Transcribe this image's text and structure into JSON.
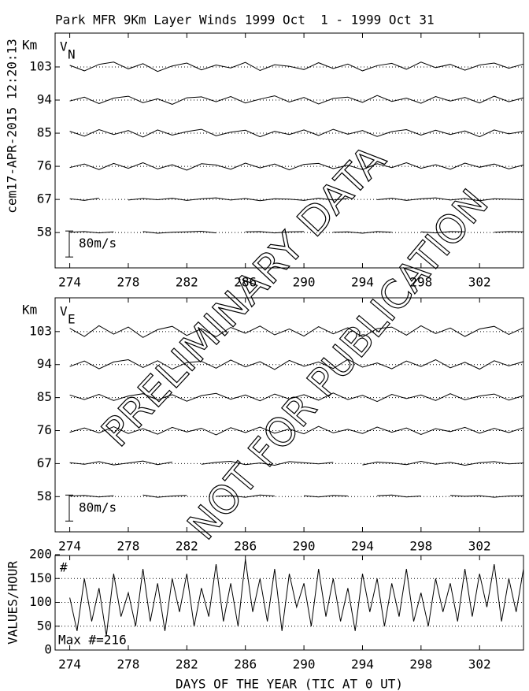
{
  "timestamp": "cem17-APR-2015 12:20:13",
  "watermark": [
    "PRELIMINARY DATA",
    "NOT FOR PUBLICATION"
  ],
  "chart_data": [
    {
      "type": "line",
      "title": "Park MFR 9Km Layer Winds 1999 Oct  1 - 1999 Oct 31",
      "y_unit": "Km",
      "component": "V",
      "component_sub": "N",
      "xlim": [
        273,
        305
      ],
      "xticks": [
        274,
        278,
        282,
        286,
        290,
        294,
        298,
        302
      ],
      "ylim": [
        48.4,
        112.2
      ],
      "yticks": [
        58,
        67,
        76,
        85,
        94,
        103
      ],
      "scale_bar": {
        "value": 80,
        "label": "80m/s"
      },
      "x": [
        274,
        275,
        276,
        277,
        278,
        279,
        280,
        281,
        282,
        283,
        284,
        285,
        286,
        287,
        288,
        289,
        290,
        291,
        292,
        293,
        294,
        295,
        296,
        297,
        298,
        299,
        300,
        301,
        302,
        303,
        304,
        305
      ],
      "series": [
        {
          "altitude": 103,
          "values": [
            5,
            -12,
            8,
            15,
            -6,
            10,
            -14,
            3,
            12,
            -9,
            6,
            -3,
            14,
            -11,
            7,
            2,
            -8,
            13,
            -5,
            9,
            -12,
            4,
            11,
            -7,
            15,
            -2,
            8,
            -10,
            6,
            12,
            -4,
            9
          ]
        },
        {
          "altitude": 94,
          "values": [
            -3,
            9,
            -11,
            6,
            12,
            -8,
            4,
            -13,
            7,
            10,
            -5,
            11,
            -9,
            3,
            13,
            -6,
            8,
            -12,
            5,
            9,
            -7,
            14,
            -4,
            6,
            -10,
            11,
            -3,
            8,
            -9,
            12,
            -5,
            7
          ]
        },
        {
          "altitude": 85,
          "values": [
            6,
            -9,
            11,
            -4,
            8,
            -12,
            10,
            -6,
            5,
            12,
            -8,
            3,
            9,
            -11,
            6,
            -4,
            10,
            -7,
            12,
            -3,
            8,
            -10,
            5,
            11,
            -6,
            9,
            -4,
            7,
            -11,
            10,
            -2,
            6
          ]
        },
        {
          "altitude": 76,
          "values": [
            -4,
            7,
            -10,
            9,
            -6,
            11,
            -8,
            5,
            -12,
            8,
            4,
            -9,
            10,
            -5,
            7,
            -11,
            6,
            9,
            -7,
            3,
            -10,
            8,
            -4,
            11,
            -6,
            5,
            -9,
            10,
            -3,
            7,
            -8,
            4
          ]
        },
        {
          "altitude": 67,
          "values": [
            2,
            -3,
            4,
            null,
            -2,
            3,
            -1,
            4,
            -3,
            2,
            5,
            -2,
            3,
            -4,
            2,
            1,
            -3,
            4,
            -2,
            3,
            null,
            -1,
            4,
            -3,
            2,
            5,
            -2,
            3,
            -4,
            2,
            1,
            -1
          ]
        },
        {
          "altitude": 58,
          "values": [
            1,
            3,
            -1,
            2,
            null,
            3,
            -2,
            1,
            2,
            4,
            -1,
            null,
            2,
            3,
            -1,
            2,
            3,
            null,
            1,
            2,
            -2,
            3,
            1,
            null,
            2,
            -1,
            3,
            2,
            null,
            1,
            3,
            2
          ]
        }
      ]
    },
    {
      "type": "line",
      "y_unit": "Km",
      "component": "V",
      "component_sub": "E",
      "xlim": [
        273,
        305
      ],
      "xticks": [
        274,
        278,
        282,
        286,
        290,
        294,
        298,
        302
      ],
      "ylim": [
        48.4,
        112.2
      ],
      "yticks": [
        58,
        67,
        76,
        85,
        94,
        103
      ],
      "scale_bar": {
        "value": 80,
        "label": "80m/s"
      },
      "x": [
        274,
        275,
        276,
        277,
        278,
        279,
        280,
        281,
        282,
        283,
        284,
        285,
        286,
        287,
        288,
        289,
        290,
        291,
        292,
        293,
        294,
        295,
        296,
        297,
        298,
        299,
        300,
        301,
        302,
        303,
        304,
        305
      ],
      "series": [
        {
          "altitude": 103,
          "values": [
            10,
            -15,
            18,
            -8,
            14,
            -18,
            6,
            16,
            -12,
            9,
            -16,
            13,
            -5,
            17,
            -10,
            8,
            -14,
            15,
            -7,
            12,
            -17,
            9,
            14,
            -11,
            18,
            -6,
            11,
            -15,
            8,
            16,
            -9,
            12
          ]
        },
        {
          "altitude": 94,
          "values": [
            -6,
            11,
            -13,
            8,
            15,
            -9,
            12,
            -14,
            6,
            10,
            -11,
            14,
            -7,
            9,
            -15,
            13,
            -5,
            8,
            -12,
            16,
            -8,
            5,
            -13,
            11,
            -6,
            15,
            -10,
            7,
            -14,
            12,
            -4,
            9
          ]
        },
        {
          "altitude": 85,
          "values": [
            8,
            -6,
            10,
            -9,
            5,
            12,
            -7,
            9,
            -11,
            6,
            13,
            -5,
            8,
            -10,
            11,
            -4,
            9,
            -8,
            14,
            -6,
            7,
            -12,
            10,
            -3,
            8,
            -9,
            12,
            -7,
            5,
            11,
            -8,
            6
          ]
        },
        {
          "altitude": 76,
          "values": [
            -5,
            8,
            -7,
            12,
            -9,
            6,
            -11,
            10,
            -4,
            7,
            -13,
            9,
            -6,
            11,
            -8,
            5,
            -10,
            13,
            -7,
            4,
            -9,
            11,
            -5,
            8,
            -12,
            6,
            -3,
            10,
            -8,
            7,
            -6,
            9
          ]
        },
        {
          "altitude": 67,
          "values": [
            3,
            -2,
            6,
            -4,
            2,
            8,
            -3,
            5,
            null,
            -2,
            4,
            7,
            -3,
            2,
            -5,
            6,
            3,
            -1,
            4,
            null,
            -4,
            5,
            2,
            -3,
            7,
            -2,
            4,
            -5,
            3,
            6,
            -1,
            2
          ]
        },
        {
          "altitude": 58,
          "values": [
            2,
            4,
            -1,
            3,
            null,
            5,
            -2,
            2,
            4,
            null,
            1,
            3,
            -2,
            5,
            2,
            null,
            3,
            -1,
            4,
            2,
            null,
            3,
            5,
            -1,
            2,
            null,
            4,
            1,
            3,
            -2,
            2,
            3
          ]
        }
      ]
    },
    {
      "type": "count",
      "ylabel": "VALUES/HOUR",
      "xlabel": "DAYS OF THE YEAR (TIC AT 0 UT)",
      "marker": "#",
      "max_label": "Max #=216",
      "grid": true,
      "xlim": [
        273,
        305
      ],
      "xticks": [
        274,
        278,
        282,
        286,
        290,
        294,
        298,
        302
      ],
      "ylim": [
        0,
        200
      ],
      "yticks": [
        0,
        50,
        100,
        150,
        200
      ],
      "x": [
        274,
        274.5,
        275,
        275.5,
        276,
        276.5,
        277,
        277.5,
        278,
        278.5,
        279,
        279.5,
        280,
        280.5,
        281,
        281.5,
        282,
        282.5,
        283,
        283.5,
        284,
        284.5,
        285,
        285.5,
        286,
        286.5,
        287,
        287.5,
        288,
        288.5,
        289,
        289.5,
        290,
        290.5,
        291,
        291.5,
        292,
        292.5,
        293,
        293.5,
        294,
        294.5,
        295,
        295.5,
        296,
        296.5,
        297,
        297.5,
        298,
        298.5,
        299,
        299.5,
        300,
        300.5,
        301,
        301.5,
        302,
        302.5,
        303,
        303.5,
        304,
        304.5,
        305
      ],
      "values": [
        110,
        40,
        150,
        60,
        130,
        30,
        160,
        70,
        120,
        50,
        170,
        60,
        140,
        40,
        150,
        80,
        160,
        50,
        130,
        70,
        180,
        60,
        140,
        50,
        190,
        80,
        150,
        60,
        170,
        40,
        160,
        90,
        140,
        50,
        170,
        70,
        150,
        60,
        130,
        40,
        160,
        80,
        150,
        50,
        140,
        70,
        170,
        60,
        120,
        50,
        150,
        80,
        140,
        60,
        170,
        70,
        160,
        90,
        180,
        60,
        150,
        80,
        170
      ]
    }
  ]
}
